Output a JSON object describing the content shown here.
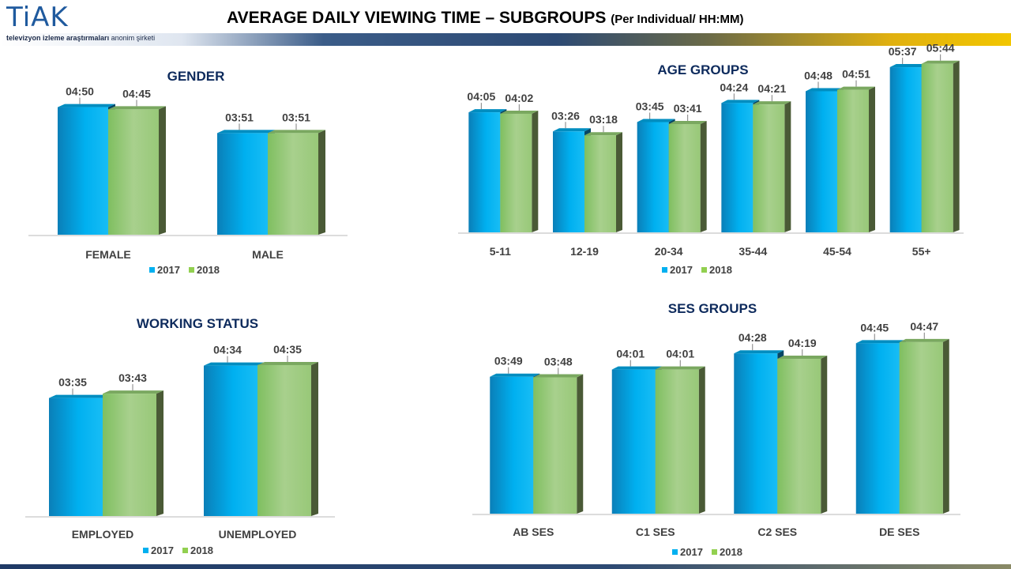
{
  "logo": {
    "text": "TiAK",
    "sub_bold": "televizyon izleme araştırmaları",
    "sub_rest": " anonim şirketi"
  },
  "title": {
    "main": "AVERAGE DAILY VIEWING TIME – SUBGROUPS",
    "sub": "(Per Individual/ HH:MM)"
  },
  "colors": {
    "series_2017": "#00b0f0",
    "series_2018": "#92d050"
  },
  "chart_data": [
    {
      "id": "gender",
      "type": "bar",
      "title": "GENDER",
      "categories": [
        "FEMALE",
        "MALE"
      ],
      "series": [
        {
          "name": "2017",
          "values": [
            290,
            231
          ],
          "labels": [
            "04:50",
            "03:51"
          ]
        },
        {
          "name": "2018",
          "values": [
            285,
            231
          ],
          "labels": [
            "04:45",
            "03:51"
          ]
        }
      ],
      "value_unit": "minutes",
      "ylim": [
        0,
        300
      ],
      "legend": "bottom"
    },
    {
      "id": "age",
      "type": "bar",
      "title": "AGE GROUPS",
      "categories": [
        "5-11",
        "12-19",
        "20-34",
        "35-44",
        "45-54",
        "55+"
      ],
      "series": [
        {
          "name": "2017",
          "values": [
            245,
            206,
            225,
            264,
            288,
            337
          ],
          "labels": [
            "04:05",
            "03:26",
            "03:45",
            "04:24",
            "04:48",
            "05:37"
          ]
        },
        {
          "name": "2018",
          "values": [
            242,
            198,
            221,
            261,
            291,
            344
          ],
          "labels": [
            "04:02",
            "03:18",
            "03:41",
            "04:21",
            "04:51",
            "05:44"
          ]
        }
      ],
      "value_unit": "minutes",
      "ylim": [
        0,
        350
      ],
      "legend": "bottom"
    },
    {
      "id": "working",
      "type": "bar",
      "title": "WORKING STATUS",
      "categories": [
        "EMPLOYED",
        "UNEMPLOYED"
      ],
      "series": [
        {
          "name": "2017",
          "values": [
            215,
            274
          ],
          "labels": [
            "03:35",
            "04:34"
          ]
        },
        {
          "name": "2018",
          "values": [
            223,
            275
          ],
          "labels": [
            "03:43",
            "04:35"
          ]
        }
      ],
      "value_unit": "minutes",
      "ylim": [
        0,
        285
      ],
      "legend": "bottom"
    },
    {
      "id": "ses",
      "type": "bar",
      "title": "SES GROUPS",
      "categories": [
        "AB SES",
        "C1 SES",
        "C2 SES",
        "DE SES"
      ],
      "series": [
        {
          "name": "2017",
          "values": [
            229,
            241,
            268,
            285
          ],
          "labels": [
            "03:49",
            "04:01",
            "04:28",
            "04:45"
          ]
        },
        {
          "name": "2018",
          "values": [
            228,
            241,
            259,
            287
          ],
          "labels": [
            "03:48",
            "04:01",
            "04:19",
            "04:47"
          ]
        }
      ],
      "value_unit": "minutes",
      "ylim": [
        0,
        300
      ],
      "legend": "bottom"
    }
  ]
}
